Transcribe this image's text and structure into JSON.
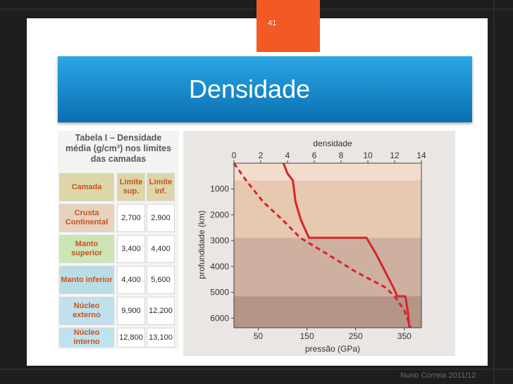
{
  "slide": {
    "number": "41",
    "title": "Densidade",
    "footer": "Nuno Correia 2011/12",
    "colors": {
      "accent": "#f15a24",
      "title_bar": "#1a8bd0"
    }
  },
  "table": {
    "title_line1": "Tabela I – Densidade",
    "title_line2": "média (g/cm³) nos limites",
    "title_line3": "das camadas",
    "headers": [
      "Camada",
      "Limite sup.",
      "Limite inf."
    ],
    "rows": [
      {
        "name": "Crusta Continental",
        "sup": "2,700",
        "inf": "2,900",
        "color": "#e6d2bd"
      },
      {
        "name": "Manto superior",
        "sup": "3,400",
        "inf": "4,400",
        "color": "#cde4b4"
      },
      {
        "name": "Manto inferior",
        "sup": "4,400",
        "inf": "5,600",
        "color": "#b9dde4"
      },
      {
        "name": "Núcleo externo",
        "sup": "9,900",
        "inf": "12,200",
        "color": "#bfe0ec"
      },
      {
        "name": "Núcleo interno",
        "sup": "12,800",
        "inf": "13,100",
        "color": "#bde3ee"
      }
    ]
  },
  "chart_data": {
    "type": "line",
    "xlabel_top": "densidade",
    "xlabel_bottom": "pressão (GPa)",
    "ylabel": "profundidade (km)",
    "density_ticks": [
      "0",
      "2",
      "4",
      "6",
      "8",
      "10",
      "12",
      "14"
    ],
    "density_range": [
      0,
      14
    ],
    "pressure_ticks": [
      "50",
      "150",
      "250",
      "350"
    ],
    "pressure_range": [
      0,
      385
    ],
    "depth_ticks": [
      "1000",
      "2000",
      "3000",
      "4000",
      "5000",
      "6000"
    ],
    "depth_range": [
      0,
      6371
    ],
    "series": [
      {
        "line_style": "solid",
        "axis": "density",
        "points": [
          [
            3.7,
            0
          ],
          [
            4.0,
            400
          ],
          [
            4.4,
            670
          ],
          [
            4.6,
            1500
          ],
          [
            5.0,
            2200
          ],
          [
            5.6,
            2890
          ],
          [
            9.9,
            2890
          ],
          [
            10.6,
            3500
          ],
          [
            11.3,
            4200
          ],
          [
            11.9,
            4800
          ],
          [
            12.2,
            5150
          ],
          [
            12.8,
            5150
          ],
          [
            13.0,
            5800
          ],
          [
            13.1,
            6371
          ]
        ]
      },
      {
        "line_style": "dashed",
        "axis": "pressure",
        "points": [
          [
            0,
            0
          ],
          [
            25,
            670
          ],
          [
            60,
            1500
          ],
          [
            100,
            2200
          ],
          [
            136,
            2890
          ],
          [
            190,
            3500
          ],
          [
            250,
            4200
          ],
          [
            310,
            4800
          ],
          [
            330,
            5150
          ],
          [
            350,
            5700
          ],
          [
            363,
            6371
          ]
        ]
      }
    ],
    "layers": [
      {
        "from": 0,
        "to": 670,
        "color": "#f3dccc"
      },
      {
        "from": 670,
        "to": 2890,
        "color": "#e7c8b1"
      },
      {
        "from": 2890,
        "to": 5150,
        "color": "#ceb0a0"
      },
      {
        "from": 5150,
        "to": 6371,
        "color": "#b49587"
      }
    ],
    "line_color": "#d8232a"
  }
}
